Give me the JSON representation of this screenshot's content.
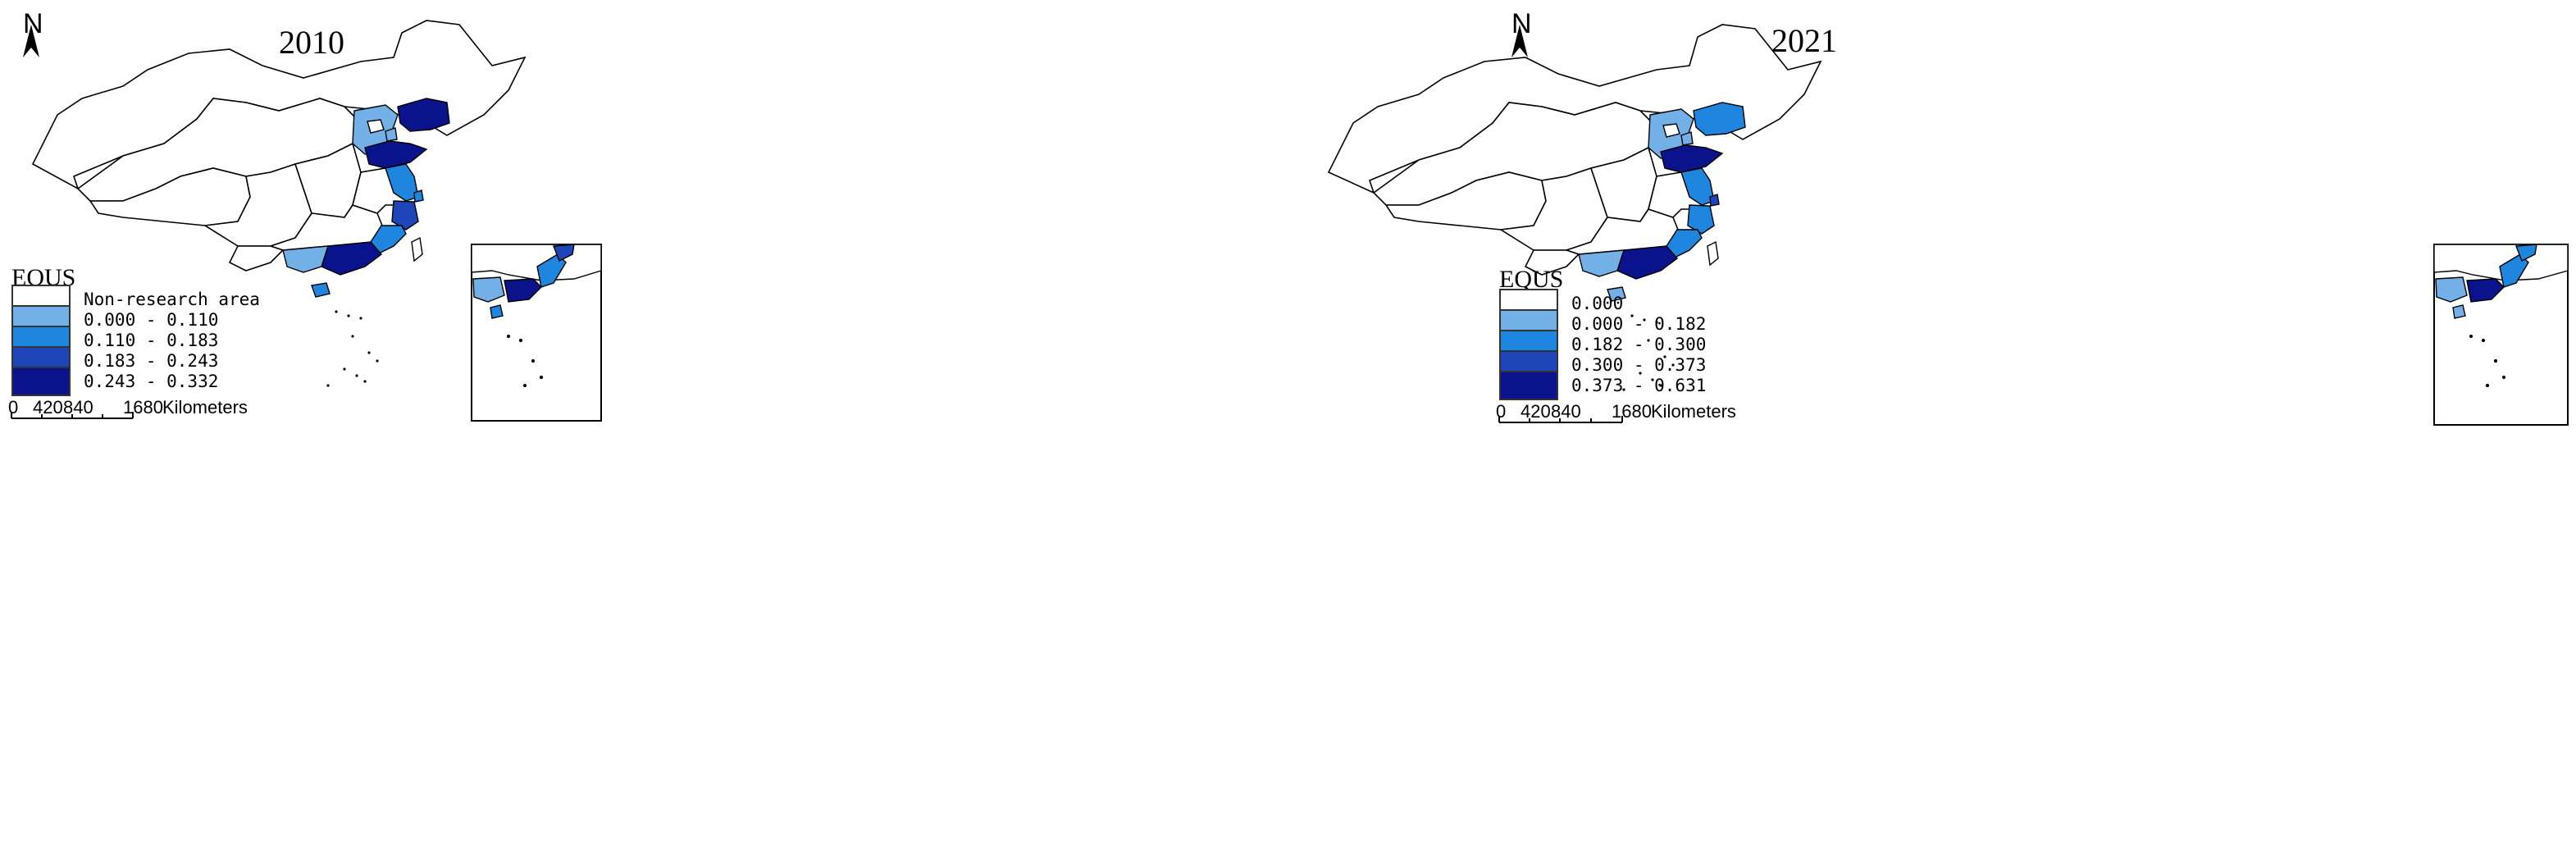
{
  "maps": [
    {
      "year": "2010",
      "north": "N",
      "legend": {
        "title": "EQUS",
        "classes": [
          {
            "label": "Non-research area",
            "color": "#ffffff"
          },
          {
            "label": "0.000 - 0.110",
            "color": "#74b0e8"
          },
          {
            "label": "0.110 - 0.183",
            "color": "#1f86e0"
          },
          {
            "label": "0.183 - 0.243",
            "color": "#1f46b8"
          },
          {
            "label": "0.243 - 0.332",
            "color": "#0a138c"
          }
        ]
      },
      "scale_bar": {
        "ticks": [
          "0",
          "420",
          "840",
          "1680"
        ],
        "unit": "Kilometers"
      }
    },
    {
      "year": "2021",
      "north": "N",
      "legend": {
        "title": "EQUS",
        "classes": [
          {
            "label": "0.000",
            "color": "#ffffff"
          },
          {
            "label": "0.000 - 0.182",
            "color": "#74b0e8"
          },
          {
            "label": "0.182 - 0.300",
            "color": "#1f86e0"
          },
          {
            "label": "0.300 - 0.373",
            "color": "#1f46b8"
          },
          {
            "label": "0.373 - 0.631",
            "color": "#0a138c"
          }
        ]
      },
      "scale_bar": {
        "ticks": [
          "0",
          "420",
          "840",
          "1680"
        ],
        "unit": "Kilometers"
      }
    }
  ],
  "region_classes": {
    "2010": {
      "hebei": 1,
      "beijing": 0,
      "tianjin": 1,
      "liaoning": 4,
      "shandong": 4,
      "jiangsu": 2,
      "shanghai": 2,
      "zhejiang": 3,
      "fujian": 2,
      "guangdong": 4,
      "guangxi": 1,
      "hainan": 2
    },
    "2021": {
      "hebei": 1,
      "beijing": 0,
      "tianjin": 1,
      "liaoning": 2,
      "shandong": 4,
      "jiangsu": 2,
      "shanghai": 3,
      "zhejiang": 2,
      "fujian": 2,
      "guangdong": 4,
      "guangxi": 1,
      "hainan": 1
    }
  }
}
